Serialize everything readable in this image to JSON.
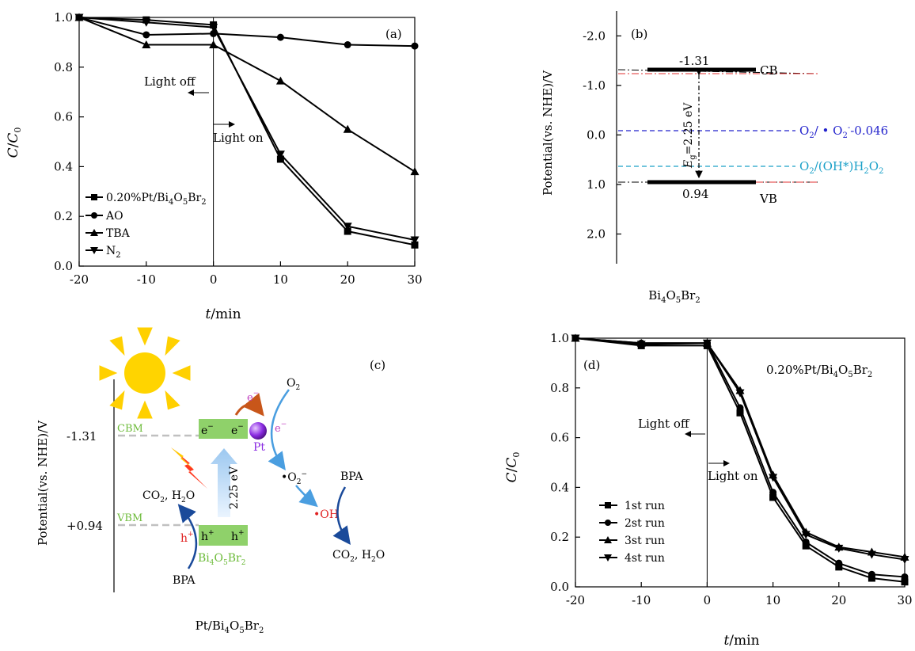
{
  "panels": {
    "a": {
      "tag": "(a)",
      "light_off": "Light off",
      "light_on": "Light on",
      "legend": [
        "0.20%Pt/Bi",
        "AO",
        "TBA",
        "N"
      ]
    },
    "b": {
      "tag": "(b)",
      "cb_value": "-1.31",
      "vb_value": "0.94",
      "cb_label": "CB",
      "vb_label": "VB",
      "ylabel": "Potential(vs. NHE)/V",
      "xlabel": "Bi",
      "eg_label": "E",
      "eg_value": "=2.25 eV",
      "o2_superoxide": "O",
      "o2_h2o2": "O"
    },
    "c": {
      "tag": "(c)",
      "ylabel": "Potential(vs. NHE)/V",
      "cbm": "CBM",
      "vbm": "VBM",
      "cbm_value": "-1.31",
      "vbm_value": "+0.94",
      "e_minus": "e",
      "h_plus": "h",
      "pt": "Pt",
      "o2": "O",
      "bpa": "BPA",
      "co2_h2o": "CO",
      "gap": "2.25 eV",
      "oh": "OH",
      "xlabel": "Pt/Bi"
    },
    "d": {
      "tag": "(d)",
      "title": "0.20%Pt/Bi",
      "light_off": "Light off",
      "light_on": "Light on"
    }
  },
  "chart_data": [
    {
      "panel": "a",
      "type": "line",
      "xlabel": "t/min",
      "ylabel": "C/C0",
      "xlim": [
        -20,
        30
      ],
      "ylim": [
        0,
        1.0
      ],
      "xticks": [
        -20,
        -10,
        0,
        10,
        20,
        30
      ],
      "yticks": [
        "0.0",
        "0.2",
        "0.4",
        "0.6",
        "0.8",
        "1.0"
      ],
      "x": [
        -20,
        -10,
        0,
        10,
        20,
        30
      ],
      "series": [
        {
          "name": "0.20%Pt/Bi4O5Br2",
          "marker": "square",
          "values": [
            1.0,
            0.99,
            0.97,
            0.43,
            0.14,
            0.085
          ]
        },
        {
          "name": "AO",
          "marker": "circle",
          "values": [
            1.0,
            0.93,
            0.935,
            0.92,
            0.89,
            0.885
          ]
        },
        {
          "name": "TBA",
          "marker": "triangle-up",
          "values": [
            1.0,
            0.89,
            0.89,
            0.745,
            0.55,
            0.38
          ]
        },
        {
          "name": "N2",
          "marker": "triangle-down",
          "values": [
            1.0,
            0.98,
            0.96,
            0.45,
            0.16,
            0.105
          ]
        }
      ]
    },
    {
      "panel": "b",
      "type": "line",
      "ylabel": "Potential(vs. NHE)/V",
      "yticks": [
        "-2.0",
        "-1.0",
        "0.0",
        "1.0",
        "2.0"
      ],
      "ylim": [
        -2.5,
        2.6
      ],
      "levels": {
        "CB": -1.31,
        "VB": 0.94,
        "O2/O2-": -0.046,
        "O2/H2O2": 0.65
      },
      "superoxide_value": "-0.046"
    },
    {
      "panel": "d",
      "type": "line",
      "xlabel": "t/min",
      "ylabel": "C/C0",
      "xlim": [
        -20,
        30
      ],
      "ylim": [
        0,
        1.0
      ],
      "xticks": [
        -20,
        -10,
        0,
        10,
        20,
        30
      ],
      "yticks": [
        "0.0",
        "0.2",
        "0.4",
        "0.6",
        "0.8",
        "1.0"
      ],
      "x": [
        -20,
        -10,
        0,
        5,
        10,
        15,
        20,
        25,
        30
      ],
      "series": [
        {
          "name": "1st run",
          "marker": "square",
          "values": [
            1.0,
            0.97,
            0.97,
            0.7,
            0.36,
            0.165,
            0.08,
            0.035,
            0.02
          ]
        },
        {
          "name": "2st run",
          "marker": "circle",
          "values": [
            1.0,
            0.98,
            0.98,
            0.72,
            0.38,
            0.18,
            0.095,
            0.05,
            0.04
          ]
        },
        {
          "name": "3st run",
          "marker": "triangle-up",
          "values": [
            1.0,
            0.98,
            0.98,
            0.79,
            0.45,
            0.22,
            0.16,
            0.14,
            0.12
          ]
        },
        {
          "name": "4st run",
          "marker": "triangle-down",
          "values": [
            1.0,
            0.975,
            0.98,
            0.78,
            0.44,
            0.21,
            0.155,
            0.13,
            0.11
          ]
        }
      ]
    }
  ]
}
